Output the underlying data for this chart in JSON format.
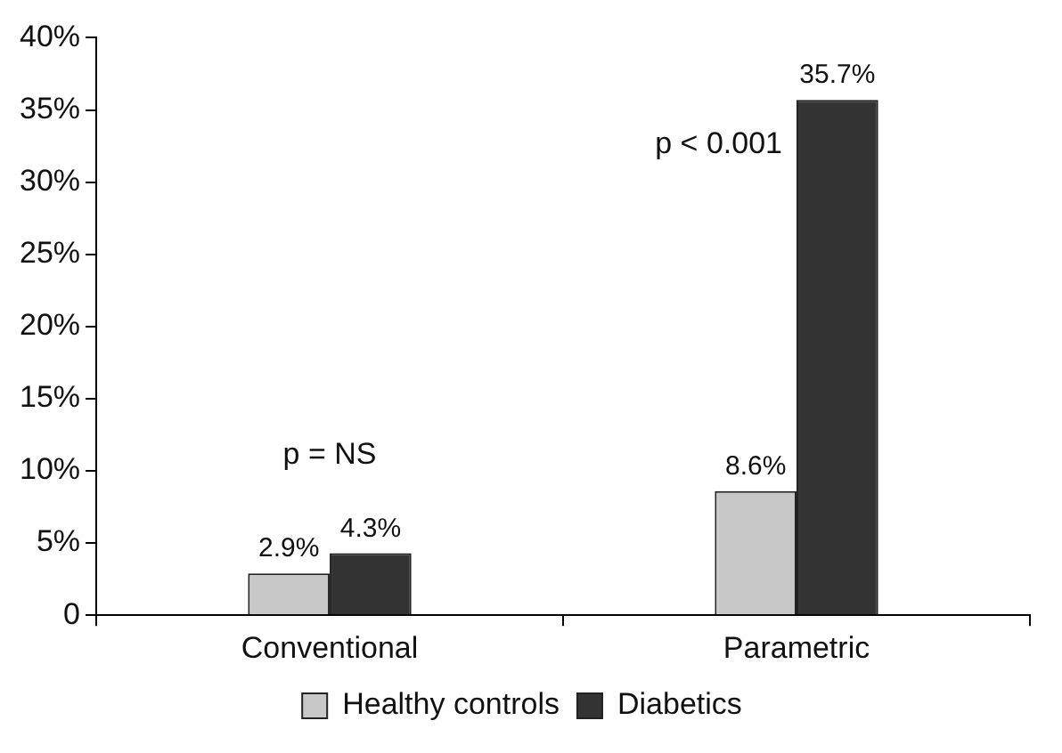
{
  "chart_data": {
    "type": "bar",
    "categories": [
      "Conventional",
      "Parametric"
    ],
    "series": [
      {
        "name": "Healthy controls",
        "color": "#c8c8c8",
        "values": [
          2.9,
          8.6
        ],
        "value_labels": [
          "2.9%",
          "8.6%"
        ]
      },
      {
        "name": "Diabetics",
        "color": "#333333",
        "values": [
          4.3,
          35.7
        ],
        "value_labels": [
          "4.3%",
          "35.7%"
        ]
      }
    ],
    "ylim": [
      0,
      40
    ],
    "yticks": [
      0,
      {
        "value": 5,
        "label": "5%"
      },
      {
        "value": 10,
        "label": "10%"
      },
      {
        "value": 15,
        "label": "15%"
      },
      {
        "value": 20,
        "label": "20%"
      },
      {
        "value": 25,
        "label": "25%"
      },
      {
        "value": 30,
        "label": "30%"
      },
      {
        "value": 35,
        "label": "35%"
      },
      {
        "value": 40,
        "label": "40%"
      }
    ],
    "annotations": [
      "p = NS",
      "p < 0.001"
    ],
    "grid": false,
    "legend": "bottom"
  }
}
